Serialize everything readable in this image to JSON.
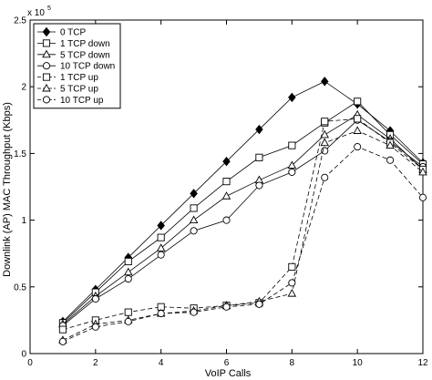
{
  "chart_data": {
    "type": "line",
    "title": "",
    "xlabel": "VoIP Calls",
    "ylabel": "Downlink (AP) MAC Throughput (Kbps)",
    "multiplier_label": "x 10",
    "multiplier_exponent": "5",
    "xlim": [
      0,
      12
    ],
    "ylim": [
      0,
      2.5
    ],
    "x_ticks": [
      "0",
      "2",
      "4",
      "6",
      "8",
      "10",
      "12"
    ],
    "y_ticks": [
      "0",
      "0.5",
      "1",
      "1.5",
      "2",
      "2.5"
    ],
    "grid": false,
    "legend_position": "top-left",
    "series": [
      {
        "name": "0 TCP",
        "marker": "diamond-filled",
        "dash": "solid",
        "x": [
          1,
          2,
          3,
          4,
          5,
          6,
          7,
          8,
          9,
          10,
          11,
          12
        ],
        "y": [
          0.24,
          0.48,
          0.72,
          0.96,
          1.2,
          1.44,
          1.68,
          1.92,
          2.04,
          1.87,
          1.67,
          1.43
        ]
      },
      {
        "name": "1 TCP down",
        "marker": "square",
        "dash": "solid",
        "x": [
          1,
          2,
          3,
          4,
          5,
          6,
          7,
          8,
          9,
          10,
          11,
          12
        ],
        "y": [
          0.23,
          0.46,
          0.69,
          0.87,
          1.09,
          1.29,
          1.47,
          1.56,
          1.73,
          1.89,
          1.64,
          1.42
        ]
      },
      {
        "name": "5 TCP down",
        "marker": "triangle",
        "dash": "solid",
        "x": [
          1,
          2,
          3,
          4,
          5,
          6,
          7,
          8,
          9,
          10,
          11,
          12
        ],
        "y": [
          0.22,
          0.43,
          0.61,
          0.79,
          1.0,
          1.18,
          1.3,
          1.41,
          1.64,
          1.79,
          1.61,
          1.38
        ]
      },
      {
        "name": "10 TCP down",
        "marker": "circle",
        "dash": "solid",
        "x": [
          1,
          2,
          3,
          4,
          5,
          6,
          7,
          8,
          9,
          10,
          11,
          12
        ],
        "y": [
          0.21,
          0.41,
          0.56,
          0.74,
          0.92,
          1.0,
          1.26,
          1.36,
          1.52,
          1.75,
          1.59,
          1.4
        ]
      },
      {
        "name": "1 TCP up",
        "marker": "square",
        "dash": "dashed",
        "x": [
          1,
          2,
          3,
          4,
          5,
          6,
          7,
          8,
          9,
          10,
          11,
          12
        ],
        "y": [
          0.18,
          0.25,
          0.31,
          0.35,
          0.34,
          0.36,
          0.38,
          0.65,
          1.74,
          1.76,
          1.58,
          1.38
        ]
      },
      {
        "name": "5 TCP up",
        "marker": "triangle",
        "dash": "dashed",
        "x": [
          1,
          2,
          3,
          4,
          5,
          6,
          7,
          8,
          9,
          10,
          11,
          12
        ],
        "y": [
          0.1,
          0.22,
          0.25,
          0.3,
          0.32,
          0.36,
          0.39,
          0.45,
          1.58,
          1.67,
          1.56,
          1.36
        ]
      },
      {
        "name": "10 TCP up",
        "marker": "circle",
        "dash": "dashed",
        "x": [
          1,
          2,
          3,
          4,
          5,
          6,
          7,
          8,
          9,
          10,
          11,
          12
        ],
        "y": [
          0.09,
          0.2,
          0.24,
          0.3,
          0.31,
          0.35,
          0.37,
          0.53,
          1.32,
          1.55,
          1.45,
          1.17
        ]
      }
    ]
  }
}
